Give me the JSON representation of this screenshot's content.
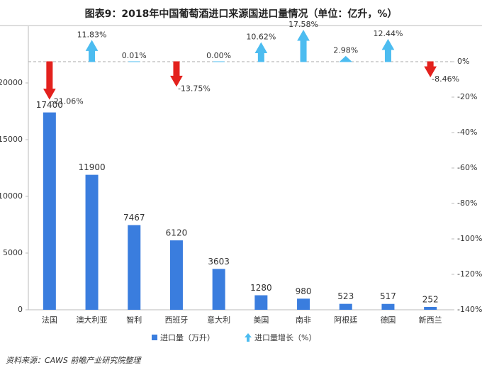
{
  "chart_data": {
    "type": "bar-arrow",
    "title": "图表9：2018年中国葡萄酒进口来源国进口量情况（单位：亿升，%）",
    "source": "资料来源：CAWS 前瞻产业研究院整理",
    "categories": [
      "法国",
      "澳大利亚",
      "智利",
      "西班牙",
      "意大利",
      "美国",
      "南非",
      "阿根廷",
      "德国",
      "新西兰"
    ],
    "series": [
      {
        "name": "进口量（万升）",
        "color": "#3a7dde",
        "values": [
          17400,
          11900,
          7467,
          6120,
          3603,
          1280,
          980,
          523,
          517,
          252
        ]
      },
      {
        "name": "进口量增长（%）",
        "color": "#4cbcf0",
        "negative_color": "#e3211d",
        "axis": "y2",
        "values": [
          -21.06,
          11.83,
          0.01,
          -13.75,
          0.0,
          10.62,
          17.58,
          2.98,
          12.44,
          -8.46
        ],
        "value_labels": [
          "-21.06%",
          "11.83%",
          "0.01%",
          "-13.75%",
          "0.00%",
          "10.62%",
          "17.58%",
          "2.98%",
          "12.44%",
          "-8.46%"
        ]
      }
    ],
    "ylim": [
      0,
      25000
    ],
    "yticks": [
      0,
      5000,
      10000,
      15000,
      20000
    ],
    "y2lim": [
      -140,
      20
    ],
    "y2ticks": [
      {
        "value": 0,
        "label": "0%"
      },
      {
        "value": -20,
        "label": "-20%"
      },
      {
        "value": -40,
        "label": "-40%"
      },
      {
        "value": -60,
        "label": "-60%"
      },
      {
        "value": -80,
        "label": "-80%"
      },
      {
        "value": -100,
        "label": "-100%"
      },
      {
        "value": -120,
        "label": "-120%"
      },
      {
        "value": -140,
        "label": "-140%"
      }
    ]
  }
}
